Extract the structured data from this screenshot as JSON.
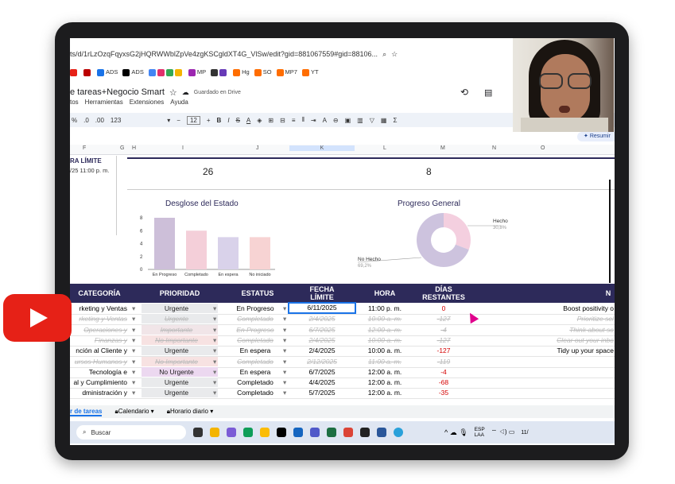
{
  "browser": {
    "url": "ts/d/1rLzOzqFqyxsG2jHQRWWblZpVe4zgKSCgldXT4G_VlSw/edit?gid=881067559#gid=88106...",
    "bookmarks": [
      "ADS",
      "ADS",
      "MP",
      "Hg",
      "SO",
      "MP7",
      "YT"
    ]
  },
  "sheet": {
    "title": "e tareas+Negocio Smart",
    "saved": "Guardado en Drive",
    "menus": [
      "tos",
      "Herramientas",
      "Extensiones",
      "Ayuda"
    ],
    "font_size": "12",
    "zoom_tools": [
      "%",
      ".0",
      ".00",
      "123"
    ],
    "resumir": "Resumir",
    "columns": [
      "F",
      "G",
      "H",
      "I",
      "J",
      "K",
      "L",
      "M",
      "N",
      "O"
    ]
  },
  "summary": {
    "left_label": "RA LÍMITE",
    "left_value": "/25 11:00 p. m.",
    "count_a": "26",
    "count_b": "8"
  },
  "chart_data": [
    {
      "type": "bar",
      "title": "Desglose del Estado",
      "categories": [
        "En Progreso",
        "Completado",
        "En espera",
        "No iniciado"
      ],
      "values": [
        8,
        6,
        5,
        5
      ],
      "ylim": [
        0,
        8
      ],
      "yticks": [
        "0",
        "2",
        "4",
        "6",
        "8"
      ],
      "colors": [
        "#cdbfd9",
        "#f4cfd9",
        "#d9d2ea",
        "#f7d3d3"
      ]
    },
    {
      "type": "pie",
      "title": "Progreso General",
      "categories": [
        "Hecho",
        "No Hecho"
      ],
      "values": [
        30.8,
        69.2
      ],
      "labels": [
        "30,8%",
        "69,2%"
      ],
      "colors": [
        "#f4cfdf",
        "#cdc3de"
      ]
    }
  ],
  "table": {
    "headers": {
      "categoria": "CATEGORÍA",
      "prioridad": "PRIORIDAD",
      "estatus": "ESTATUS",
      "fecha1": "FECHA",
      "fecha2": "LÍMITE",
      "hora": "HORA",
      "dias1": "DÍAS",
      "dias2": "RESTANTES",
      "next": "N"
    },
    "rows": [
      {
        "cat": "rketing y Ventas",
        "pri": "Urgente",
        "est": "En Progreso",
        "fecha": "6/11/2025",
        "hora": "11:00 p. m.",
        "dias": "0",
        "note": "Boost positivity o",
        "done": false
      },
      {
        "cat": "rketing y Ventas",
        "pri": "Urgente",
        "est": "Completado",
        "fecha": "2/4/2025",
        "hora": "10:00 a. m.",
        "dias": "-127",
        "note": "Prioritize sel",
        "done": true
      },
      {
        "cat": "Operaciones y",
        "pri": "Importante",
        "est": "En Progreso",
        "fecha": "6/7/2025",
        "hora": "12:00 a. m.",
        "dias": "-4",
        "note": "Think about so",
        "done": true
      },
      {
        "cat": "Finanzas y",
        "pri": "No Importante",
        "est": "Completado",
        "fecha": "2/4/2025",
        "hora": "10:00 a. m.",
        "dias": "-127",
        "note": "Clear out your inbo",
        "done": true
      },
      {
        "cat": "nción al Cliente y",
        "pri": "Urgente",
        "est": "En espera",
        "fecha": "2/4/2025",
        "hora": "10:00 a. m.",
        "dias": "-127",
        "note": "Tidy up your space",
        "done": false
      },
      {
        "cat": "ursos Humanos y",
        "pri": "No Importante",
        "est": "Completado",
        "fecha": "2/12/2025",
        "hora": "11:00 a. m.",
        "dias": "-119",
        "note": "",
        "done": true
      },
      {
        "cat": "Tecnología e",
        "pri": "No Urgente",
        "est": "En espera",
        "fecha": "6/7/2025",
        "hora": "12:00 a. m.",
        "dias": "-4",
        "note": "",
        "done": false
      },
      {
        "cat": "al y Cumplimiento",
        "pri": "Urgente",
        "est": "Completado",
        "fecha": "4/4/2025",
        "hora": "12:00 a. m.",
        "dias": "-68",
        "note": "",
        "done": false
      },
      {
        "cat": "dministración y",
        "pri": "Urgente",
        "est": "Completado",
        "fecha": "5/7/2025",
        "hora": "12:00 a. m.",
        "dias": "-35",
        "note": "",
        "done": false
      }
    ]
  },
  "tabs": [
    "r de tareas",
    "Calendario",
    "Horario diario"
  ],
  "taskbar": {
    "search": "Buscar",
    "lang1": "ESP",
    "lang2": "LAA",
    "clock": "11/"
  }
}
